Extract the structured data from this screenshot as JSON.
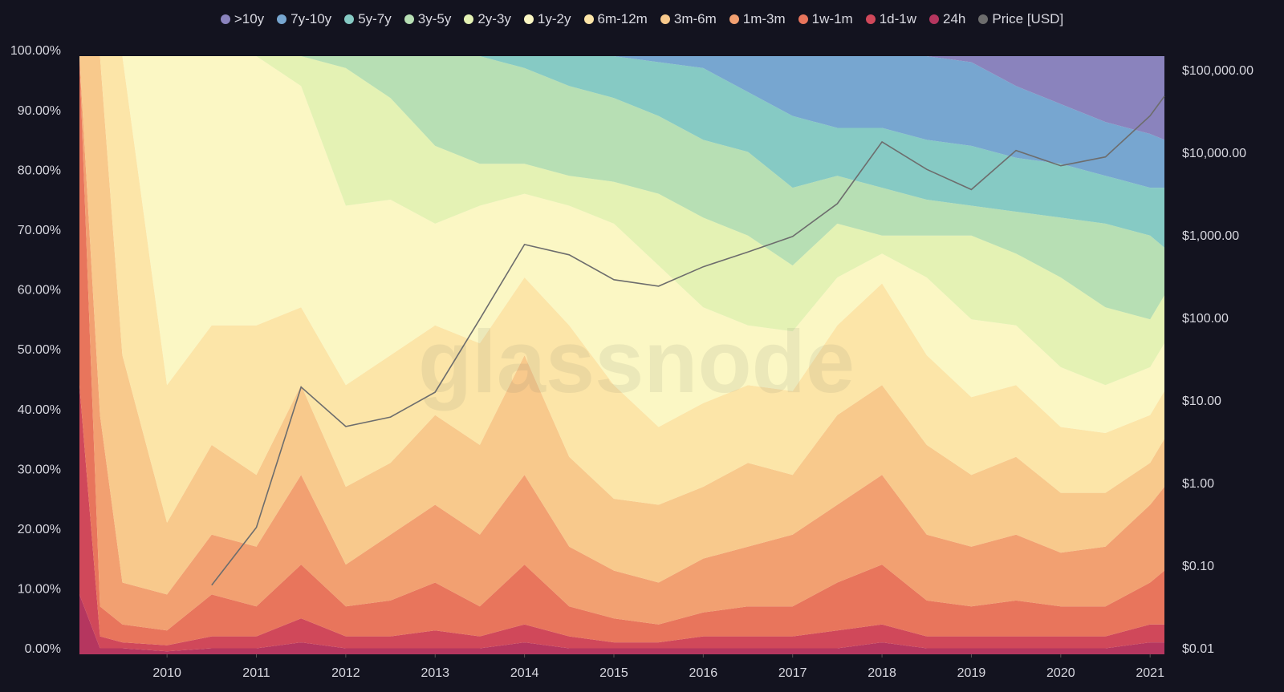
{
  "chart_data": {
    "type": "area",
    "stacked": true,
    "watermark": "glassnode",
    "x": [
      2009.02,
      2009.25,
      2009.5,
      2010,
      2010.5,
      2011,
      2011.5,
      2012,
      2012.5,
      2013,
      2013.5,
      2014,
      2014.5,
      2015,
      2015.5,
      2016,
      2016.5,
      2017,
      2017.5,
      2018,
      2018.5,
      2019,
      2019.5,
      2020,
      2020.5,
      2021,
      2021.16
    ],
    "xlim": [
      2009.02,
      2021.16
    ],
    "xticks": [
      2010,
      2011,
      2012,
      2013,
      2014,
      2015,
      2016,
      2017,
      2018,
      2019,
      2020,
      2021
    ],
    "ylim": [
      0,
      100
    ],
    "yticks": [
      {
        "value": 0,
        "label": "0.00%"
      },
      {
        "value": 10,
        "label": "10.00%"
      },
      {
        "value": 20,
        "label": "20.00%"
      },
      {
        "value": 30,
        "label": "30.00%"
      },
      {
        "value": 40,
        "label": "40.00%"
      },
      {
        "value": 50,
        "label": "50.00%"
      },
      {
        "value": 60,
        "label": "60.00%"
      },
      {
        "value": 70,
        "label": "70.00%"
      },
      {
        "value": 80,
        "label": "80.00%"
      },
      {
        "value": 90,
        "label": "90.00%"
      },
      {
        "value": 100,
        "label": "100.00%"
      }
    ],
    "y2lim": [
      0.0087,
      153000
    ],
    "y2log": true,
    "y2ticks": [
      {
        "value": 0.01,
        "label": "$0.01"
      },
      {
        "value": 0.1,
        "label": "$0.10"
      },
      {
        "value": 1,
        "label": "$1.00"
      },
      {
        "value": 10,
        "label": "$10.00"
      },
      {
        "value": 100,
        "label": "$100.00"
      },
      {
        "value": 1000,
        "label": "$1,000.00"
      },
      {
        "value": 10000,
        "label": "$10,000.00"
      },
      {
        "value": 100000,
        "label": "$100,000.00"
      }
    ],
    "series": [
      {
        "name": "24h",
        "color": "#b5365f",
        "values": [
          10,
          1,
          1,
          0.5,
          1,
          1,
          2,
          1,
          1,
          1,
          1,
          2,
          1,
          1,
          1,
          1,
          1,
          1,
          1,
          2,
          1,
          1,
          1,
          1,
          1,
          2,
          2
        ]
      },
      {
        "name": "1d-1w",
        "color": "#d0485a",
        "values": [
          35,
          2,
          1,
          1,
          2,
          2,
          4,
          2,
          2,
          3,
          2,
          3,
          2,
          1,
          1,
          2,
          2,
          2,
          3,
          3,
          2,
          2,
          2,
          2,
          2,
          3,
          3
        ]
      },
      {
        "name": "1w-1m",
        "color": "#e8755c",
        "values": [
          55,
          5,
          3,
          2.5,
          7,
          5,
          9,
          5,
          6,
          8,
          5,
          10,
          5,
          4,
          3,
          4,
          5,
          5,
          8,
          10,
          6,
          5,
          6,
          5,
          5,
          7,
          9
        ]
      },
      {
        "name": "1m-3m",
        "color": "#f2a071",
        "values": [
          0,
          32,
          7,
          6,
          10,
          10,
          15,
          7,
          11,
          13,
          12,
          15,
          10,
          8,
          7,
          9,
          10,
          12,
          13,
          15,
          11,
          10,
          11,
          9,
          10,
          13,
          14
        ]
      },
      {
        "name": "3m-6m",
        "color": "#f8c98c",
        "values": [
          0,
          60,
          38,
          12,
          15,
          12,
          15,
          13,
          12,
          15,
          15,
          20,
          15,
          12,
          13,
          12,
          14,
          10,
          15,
          15,
          15,
          12,
          13,
          10,
          9,
          7,
          8
        ]
      },
      {
        "name": "6m-12m",
        "color": "#fce5a8",
        "values": [
          0,
          0,
          50,
          23,
          20,
          25,
          13,
          17,
          18,
          15,
          17,
          13,
          22,
          19,
          13,
          14,
          13,
          14,
          15,
          17,
          15,
          13,
          12,
          11,
          10,
          8,
          8
        ]
      },
      {
        "name": "1y-2y",
        "color": "#fbf7c4",
        "values": [
          0,
          0,
          0,
          55,
          45,
          45,
          37,
          30,
          26,
          17,
          23,
          14,
          20,
          27,
          27,
          16,
          10,
          10,
          8,
          5,
          13,
          13,
          10,
          10,
          8,
          8,
          8
        ]
      },
      {
        "name": "2y-3y",
        "color": "#e4f2b4",
        "values": [
          0,
          0,
          0,
          0,
          0,
          0,
          5,
          23,
          17,
          13,
          7,
          5,
          5,
          7,
          12,
          15,
          15,
          11,
          9,
          3,
          7,
          14,
          12,
          15,
          13,
          8,
          8
        ]
      },
      {
        "name": "3y-5y",
        "color": "#b7dfb4",
        "values": [
          0,
          0,
          0,
          0,
          0,
          0,
          0,
          2,
          7,
          15,
          18,
          16,
          15,
          14,
          13,
          13,
          14,
          13,
          8,
          8,
          6,
          5,
          7,
          10,
          14,
          14,
          8
        ]
      },
      {
        "name": "5y-7y",
        "color": "#86cac4",
        "values": [
          0,
          0,
          0,
          0,
          0,
          0,
          0,
          0,
          0,
          0,
          0,
          2,
          5,
          7,
          9,
          12,
          10,
          12,
          8,
          10,
          10,
          10,
          9,
          9,
          8,
          8,
          10
        ]
      },
      {
        "name": "7y-10y",
        "color": "#77a6d0",
        "values": [
          0,
          0,
          0,
          0,
          0,
          0,
          0,
          0,
          0,
          0,
          0,
          0,
          0,
          0,
          1,
          2,
          6,
          10,
          12,
          12,
          14,
          14,
          12,
          10,
          9,
          9,
          8
        ]
      },
      {
        "name": ">10y",
        "color": "#8a83bd",
        "values": [
          0,
          0,
          0,
          0,
          0,
          0,
          0,
          0,
          0,
          0,
          0,
          0,
          0,
          0,
          0,
          0,
          0,
          0,
          0,
          0,
          0,
          1,
          5,
          8,
          11,
          13,
          14
        ]
      },
      {
        "name": "Price [USD]",
        "color": "#6d6d6d",
        "axis": "y2",
        "values": [
          null,
          null,
          null,
          null,
          0.06,
          0.3,
          15,
          5,
          6.5,
          13,
          100,
          800,
          600,
          300,
          250,
          430,
          650,
          1000,
          2500,
          14000,
          6500,
          3700,
          11000,
          7200,
          9200,
          29000,
          50000
        ]
      }
    ]
  }
}
